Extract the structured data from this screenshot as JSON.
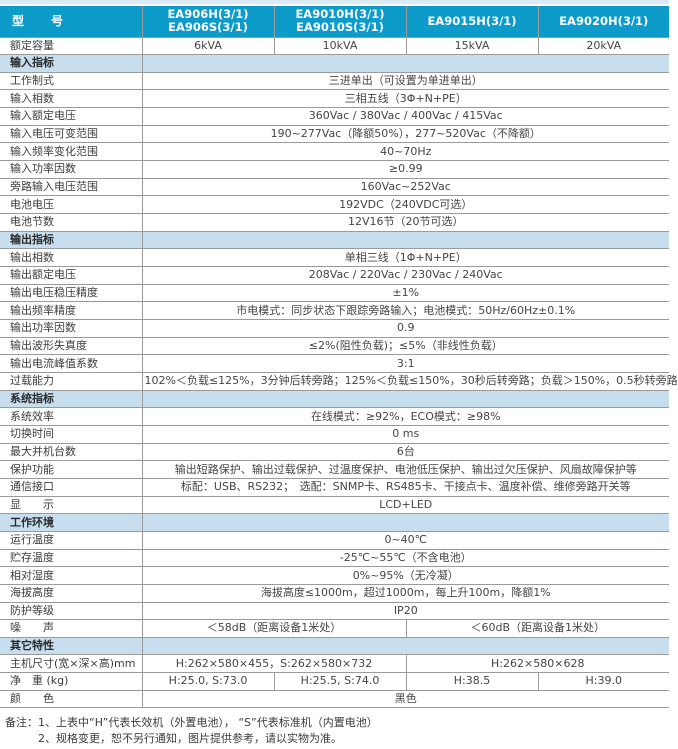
{
  "colors": {
    "header_bg": "#0d9bca",
    "section_bg": "#c7deee",
    "top_strip": "#d9eaf4",
    "border": "#9b9b9b",
    "text": "#3d3d3d"
  },
  "table": {
    "model_label": "型　　号",
    "model_cells": [
      "EA906H(3/1)\nEA906S(3/1)",
      "EA9010H(3/1)\nEA9010S(3/1)",
      "EA9015H(3/1)",
      "EA9020H(3/1)"
    ],
    "rows": [
      {
        "kind": "data",
        "label": "额定容量",
        "cells": [
          {
            "text": "6kVA",
            "span": 1
          },
          {
            "text": "10kVA",
            "span": 1
          },
          {
            "text": "15kVA",
            "span": 1
          },
          {
            "text": "20kVA",
            "span": 1
          }
        ]
      },
      {
        "kind": "section",
        "label": "输入指标"
      },
      {
        "kind": "data",
        "label": "工作制式",
        "cells": [
          {
            "text": "三进单出（可设置为单进单出）",
            "span": 4
          }
        ]
      },
      {
        "kind": "data",
        "label": "输入相数",
        "cells": [
          {
            "text": "三相五线（3Φ+N+PE）",
            "span": 4
          }
        ]
      },
      {
        "kind": "data",
        "label": "输入额定电压",
        "cells": [
          {
            "text": "360Vac / 380Vac / 400Vac / 415Vac",
            "span": 4
          }
        ]
      },
      {
        "kind": "data",
        "label": "输入电压可变范围",
        "cells": [
          {
            "text": "190~277Vac（降额50%），277~520Vac（不降额）",
            "span": 4
          }
        ]
      },
      {
        "kind": "data",
        "label": "输入频率变化范围",
        "cells": [
          {
            "text": "40~70Hz",
            "span": 4
          }
        ]
      },
      {
        "kind": "data",
        "label": "输入功率因数",
        "cells": [
          {
            "text": "≥0.99",
            "span": 4
          }
        ]
      },
      {
        "kind": "data",
        "label": "旁路输入电压范围",
        "cells": [
          {
            "text": "160Vac~252Vac",
            "span": 4
          }
        ]
      },
      {
        "kind": "data",
        "label": "电池电压",
        "cells": [
          {
            "text": "192VDC（240VDC可选）",
            "span": 4
          }
        ]
      },
      {
        "kind": "data",
        "label": "电池节数",
        "cells": [
          {
            "text": "12V16节（20节可选）",
            "span": 4
          }
        ]
      },
      {
        "kind": "section",
        "label": "输出指标"
      },
      {
        "kind": "data",
        "label": "输出相数",
        "cells": [
          {
            "text": "单相三线（1Φ+N+PE）",
            "span": 4
          }
        ]
      },
      {
        "kind": "data",
        "label": "输出额定电压",
        "cells": [
          {
            "text": "208Vac / 220Vac / 230Vac / 240Vac",
            "span": 4
          }
        ]
      },
      {
        "kind": "data",
        "label": "输出电压稳压精度",
        "cells": [
          {
            "text": "±1%",
            "span": 4
          }
        ]
      },
      {
        "kind": "data",
        "label": "输出频率精度",
        "cells": [
          {
            "text": "市电模式：同步状态下跟踪旁路输入；电池模式：50Hz/60Hz±0.1%",
            "span": 4
          }
        ]
      },
      {
        "kind": "data",
        "label": "输出功率因数",
        "cells": [
          {
            "text": "0.9",
            "span": 4
          }
        ]
      },
      {
        "kind": "data",
        "label": "输出波形失真度",
        "cells": [
          {
            "text": "≤2%(阻性负载)；≤5%（非线性负载）",
            "span": 4
          }
        ]
      },
      {
        "kind": "data",
        "label": "输出电流峰值系数",
        "cells": [
          {
            "text": "3:1",
            "span": 4
          }
        ]
      },
      {
        "kind": "data",
        "label": "过载能力",
        "cells": [
          {
            "text": "102%＜负载≤125%，3分钟后转旁路；125%＜负载≤150%，30秒后转旁路；负载＞150%，0.5秒转旁路",
            "span": 4
          }
        ]
      },
      {
        "kind": "section",
        "label": "系统指标"
      },
      {
        "kind": "data",
        "label": "系统效率",
        "cells": [
          {
            "text": "在线模式：≥92%，ECO模式：≥98%",
            "span": 4
          }
        ]
      },
      {
        "kind": "data",
        "label": "切换时间",
        "cells": [
          {
            "text": "0 ms",
            "span": 4
          }
        ]
      },
      {
        "kind": "data",
        "label": "最大并机台数",
        "cells": [
          {
            "text": "6台",
            "span": 4
          }
        ]
      },
      {
        "kind": "data",
        "label": "保护功能",
        "cells": [
          {
            "text": "输出短路保护、输出过载保护、过温度保护、电池低压保护、输出过欠压保护、风扇故障保护等",
            "span": 4
          }
        ]
      },
      {
        "kind": "data",
        "label": "通信接口",
        "cells": [
          {
            "text": "标配：USB、RS232；　选配：SNMP卡、RS485卡、干接点卡、温度补偿、维修旁路开关等",
            "span": 4
          }
        ]
      },
      {
        "kind": "data",
        "label": "显　　示",
        "cells": [
          {
            "text": "LCD+LED",
            "span": 4
          }
        ]
      },
      {
        "kind": "section",
        "label": "工作环境"
      },
      {
        "kind": "data",
        "label": "运行温度",
        "cells": [
          {
            "text": "0~40℃",
            "span": 4
          }
        ]
      },
      {
        "kind": "data",
        "label": "贮存温度",
        "cells": [
          {
            "text": "-25℃~55℃（不含电池）",
            "span": 4
          }
        ]
      },
      {
        "kind": "data",
        "label": "相对湿度",
        "cells": [
          {
            "text": "0%~95%（无冷凝）",
            "span": 4
          }
        ]
      },
      {
        "kind": "data",
        "label": "海拔高度",
        "cells": [
          {
            "text": "海拔高度≤1000m，超过1000m，每上升100m，降额1%",
            "span": 4
          }
        ]
      },
      {
        "kind": "data",
        "label": "防护等级",
        "cells": [
          {
            "text": "IP20",
            "span": 4
          }
        ]
      },
      {
        "kind": "data",
        "label": "噪　　声",
        "cells": [
          {
            "text": "＜58dB（距离设备1米处）",
            "span": 2
          },
          {
            "text": "＜60dB（距离设备1米处）",
            "span": 2
          }
        ]
      },
      {
        "kind": "section",
        "label": "其它特性"
      },
      {
        "kind": "data",
        "label": "主机尺寸(宽×深×高)mm",
        "cells": [
          {
            "text": "H:262×580×455，S:262×580×732",
            "span": 2
          },
          {
            "text": "H:262×580×628",
            "span": 2
          }
        ]
      },
      {
        "kind": "data",
        "label": "净　重 (kg)",
        "cells": [
          {
            "text": "H:25.0, S:73.0",
            "span": 1
          },
          {
            "text": "H:25.5, S:74.0",
            "span": 1
          },
          {
            "text": "H:38.5",
            "span": 1
          },
          {
            "text": "H:39.0",
            "span": 1
          }
        ]
      },
      {
        "kind": "data",
        "label": "颜　　色",
        "cells": [
          {
            "text": "黑色",
            "span": 4
          }
        ]
      }
    ]
  },
  "notes": {
    "line1": "备注：1、上表中“H”代表长效机（外置电池）， “S”代表标准机（内置电池）",
    "line2": "2、规格变更，恕不另行通知，图片提供参考，请以实物为准。"
  }
}
